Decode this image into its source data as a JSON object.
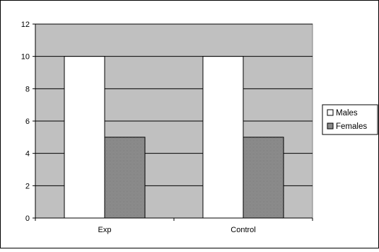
{
  "chart_data": {
    "type": "bar",
    "title": "",
    "xlabel": "",
    "ylabel": "",
    "categories": [
      "Exp",
      "Control"
    ],
    "series": [
      {
        "name": "Males",
        "values": [
          10,
          10
        ],
        "fill": "#ffffff",
        "pattern": "solid"
      },
      {
        "name": "Females",
        "values": [
          5,
          5
        ],
        "fill": "#8c8c8c",
        "pattern": "dotted-hatch"
      }
    ],
    "ylim": [
      0,
      12
    ],
    "yticks": [
      0,
      2,
      4,
      6,
      8,
      10,
      12
    ],
    "grid": true,
    "legend_position": "right",
    "colors": {
      "plot_area": "#c0c0c0",
      "border": "#000000",
      "gridline": "#000000",
      "males_fill": "#ffffff",
      "females_fill": "#8c8c8c"
    }
  }
}
